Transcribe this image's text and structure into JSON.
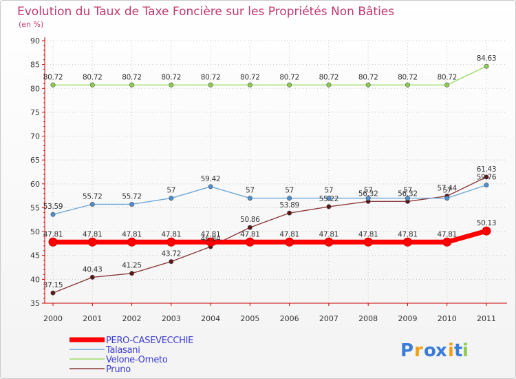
{
  "chart_data": {
    "type": "line",
    "title": "Evolution du Taux de Taxe Foncière sur les Propriétés Non Bâties",
    "subtitle": "(en %)",
    "xlabel": "",
    "ylabel": "(en %)",
    "ylim": [
      35,
      90
    ],
    "yticks": [
      35,
      40,
      45,
      50,
      55,
      60,
      65,
      70,
      75,
      80,
      85,
      90
    ],
    "categories": [
      "2000",
      "2001",
      "2002",
      "2003",
      "2004",
      "2005",
      "2006",
      "2007",
      "2008",
      "2009",
      "2010",
      "2011"
    ],
    "series": [
      {
        "name": "PERO-CASEVECCHIE",
        "color": "#ff0000",
        "point_color": "#ff0000",
        "values": [
          47.81,
          47.81,
          47.81,
          47.81,
          47.81,
          47.81,
          47.81,
          47.81,
          47.81,
          47.81,
          47.81,
          50.13
        ],
        "labels": [
          "47.81",
          "47.81",
          "47.81",
          "47.81",
          "47.81",
          "47.81",
          "47.81",
          "47.81",
          "47.81",
          "47.81",
          "47.81",
          "50.13"
        ]
      },
      {
        "name": "Talasani",
        "color": "#6fa8d8",
        "point_color": "#4a8fd0",
        "values": [
          53.59,
          55.72,
          55.72,
          57,
          59.42,
          57,
          57,
          57,
          57,
          57,
          57,
          59.76
        ],
        "labels": [
          "53.59",
          "55.72",
          "55.72",
          "57",
          "59.42",
          "57",
          "57",
          "57",
          "57",
          "57",
          "57",
          "59.76"
        ]
      },
      {
        "name": "Velone-Orneto",
        "color": "#99dd66",
        "point_color": "#8ccc4f",
        "values": [
          80.72,
          80.72,
          80.72,
          80.72,
          80.72,
          80.72,
          80.72,
          80.72,
          80.72,
          80.72,
          80.72,
          84.63
        ],
        "labels": [
          "80.72",
          "80.72",
          "80.72",
          "80.72",
          "80.72",
          "80.72",
          "80.72",
          "80.72",
          "80.72",
          "80.72",
          "80.72",
          "84.63"
        ]
      },
      {
        "name": "Pruno",
        "color": "#8b3a3a",
        "point_color": "#5a1616",
        "values": [
          37.15,
          40.43,
          41.25,
          43.72,
          46.84,
          50.86,
          53.89,
          55.22,
          56.32,
          56.32,
          57.44,
          61.43
        ],
        "labels": [
          "37.15",
          "40.43",
          "41.25",
          "43.72",
          "46.84",
          "50.86",
          "53.89",
          "55.22",
          "56.32",
          "56.32",
          "57.44",
          "61.43"
        ]
      }
    ]
  },
  "logo": {
    "text": "Proxiti",
    "letters": [
      "P",
      "r",
      "o",
      "x",
      "i",
      "t",
      "i"
    ],
    "colors": [
      "#3a7dd8",
      "#f0a018",
      "#3a7dd8",
      "#3a7dd8",
      "#f0a018",
      "#3a7dd8",
      "#8ccc4f"
    ]
  }
}
